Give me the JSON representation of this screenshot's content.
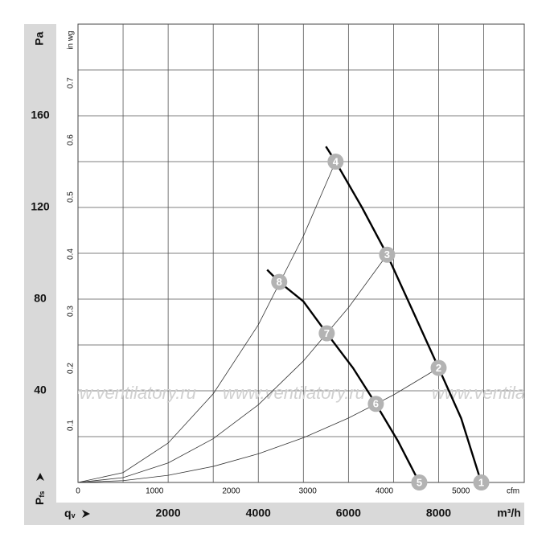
{
  "chart_data": {
    "type": "line",
    "y_unit": "Pa",
    "y2_unit": "in wg",
    "x_unit": "m³/h",
    "x2_unit": "cfm",
    "x_symbol": "q",
    "x_symbol_sub": "v",
    "y_symbol": "P",
    "y_symbol_sub": "fs",
    "watermark": "www.ventilatory.ru",
    "xlim": [
      0,
      9900
    ],
    "xticks": [
      2000,
      4000,
      6000,
      8000
    ],
    "x2lim": [
      0,
      5827
    ],
    "x2ticks": [
      0,
      1000,
      2000,
      3000,
      4000,
      5000
    ],
    "ylim": [
      0,
      200
    ],
    "yticks": [
      40,
      80,
      120,
      160
    ],
    "y2lim": [
      0,
      0.803
    ],
    "y2ticks": [
      0.1,
      0.2,
      0.3,
      0.4,
      0.5,
      0.6,
      0.7
    ],
    "xgrid": [
      1000,
      2000,
      3000,
      4000,
      5000,
      6000,
      7000,
      8000,
      9000
    ],
    "ygrid": [
      20,
      40,
      60,
      80,
      100,
      120,
      140,
      160,
      180
    ],
    "series": [
      {
        "role": "fan",
        "color": "#000000",
        "x": [
          5500,
          5714,
          6300,
          6857,
          7400,
          8000,
          8500,
          8946
        ],
        "values": [
          146.6,
          140,
          120,
          99.4,
          76,
          50,
          28,
          0
        ]
      },
      {
        "role": "fan",
        "color": "#000000",
        "x": [
          4196,
          4464,
          5000,
          5518,
          6100,
          6607,
          7100,
          7571
        ],
        "values": [
          92.8,
          87.5,
          79,
          65.1,
          50,
          34.3,
          18,
          0
        ]
      },
      {
        "role": "system",
        "color": "#333333",
        "x": [
          0,
          1000,
          2000,
          3000,
          4000,
          5000,
          5714
        ],
        "values": [
          0,
          4.3,
          17.2,
          38.7,
          68.8,
          107.5,
          140
        ]
      },
      {
        "role": "system",
        "color": "#333333",
        "x": [
          0,
          1000,
          2000,
          3000,
          4000,
          5000,
          6000,
          6857
        ],
        "values": [
          0,
          2.1,
          8.5,
          19.1,
          33.9,
          53,
          76.3,
          99.4
        ]
      },
      {
        "role": "system",
        "color": "#333333",
        "x": [
          0,
          1000,
          2000,
          3000,
          4000,
          5000,
          6000,
          7000,
          8000
        ],
        "values": [
          0,
          0.8,
          3.1,
          7,
          12.5,
          19.5,
          28.1,
          38.2,
          50
        ]
      }
    ],
    "points": [
      {
        "label": "1",
        "x": 8946,
        "y": 0
      },
      {
        "label": "2",
        "x": 8000,
        "y": 50
      },
      {
        "label": "3",
        "x": 6857,
        "y": 99.4
      },
      {
        "label": "4",
        "x": 5714,
        "y": 140
      },
      {
        "label": "5",
        "x": 7571,
        "y": 0
      },
      {
        "label": "6",
        "x": 6607,
        "y": 34.3
      },
      {
        "label": "7",
        "x": 5518,
        "y": 65.1
      },
      {
        "label": "8",
        "x": 4464,
        "y": 87.5
      }
    ],
    "point_color": "#b3b3b3"
  }
}
